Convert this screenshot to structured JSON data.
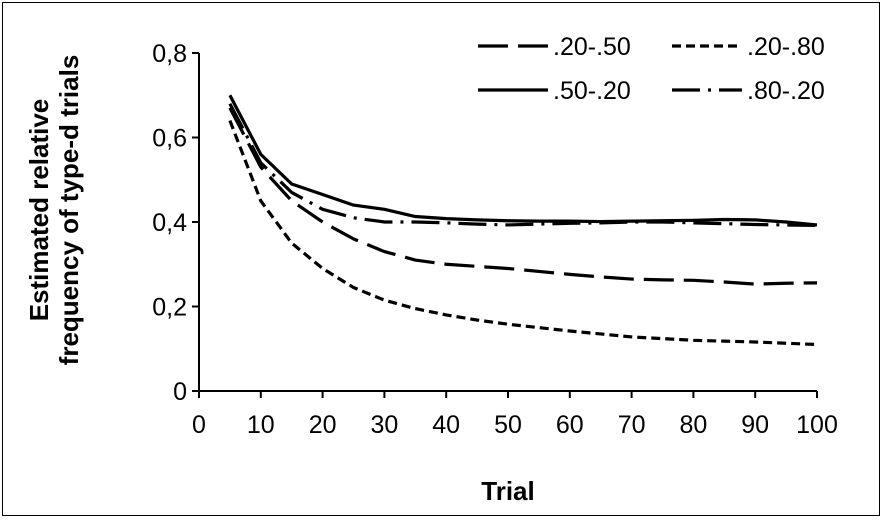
{
  "chart_data": {
    "type": "line",
    "xlabel": "Trial",
    "ylabel_lines": [
      "Estimated relative",
      "frequency of type-d trials"
    ],
    "xlim": [
      0,
      100
    ],
    "ylim": [
      0,
      0.8
    ],
    "x_ticks": [
      0,
      10,
      20,
      30,
      40,
      50,
      60,
      70,
      80,
      90,
      100
    ],
    "x_tick_labels": [
      "0",
      "10",
      "20",
      "30",
      "40",
      "50",
      "60",
      "70",
      "80",
      "90",
      "100"
    ],
    "y_ticks": [
      0,
      0.2,
      0.4,
      0.6,
      0.8
    ],
    "y_tick_labels": [
      "0",
      "0,2",
      "0,4",
      "0,6",
      "0,8"
    ],
    "grid": false,
    "legend_position": "top-right",
    "x": [
      5,
      10,
      15,
      20,
      25,
      30,
      35,
      40,
      45,
      50,
      55,
      60,
      65,
      70,
      75,
      80,
      85,
      90,
      95,
      100
    ],
    "series": [
      {
        "name": ".20-.50",
        "style": "long-dash",
        "values": [
          0.67,
          0.53,
          0.45,
          0.4,
          0.36,
          0.33,
          0.31,
          0.3,
          0.295,
          0.29,
          0.283,
          0.276,
          0.27,
          0.265,
          0.263,
          0.262,
          0.258,
          0.253,
          0.255,
          0.256
        ]
      },
      {
        "name": ".20-.80",
        "style": "short-dash",
        "values": [
          0.64,
          0.45,
          0.35,
          0.29,
          0.245,
          0.215,
          0.195,
          0.18,
          0.168,
          0.158,
          0.15,
          0.142,
          0.135,
          0.128,
          0.124,
          0.12,
          0.118,
          0.116,
          0.113,
          0.11
        ]
      },
      {
        "name": ".50-.20",
        "style": "solid",
        "values": [
          0.7,
          0.56,
          0.49,
          0.465,
          0.44,
          0.43,
          0.413,
          0.408,
          0.405,
          0.403,
          0.402,
          0.402,
          0.401,
          0.402,
          0.403,
          0.404,
          0.406,
          0.405,
          0.4,
          0.393
        ]
      },
      {
        "name": ".80-.20",
        "style": "dash-dot",
        "values": [
          0.68,
          0.54,
          0.47,
          0.43,
          0.41,
          0.4,
          0.4,
          0.398,
          0.395,
          0.393,
          0.395,
          0.397,
          0.398,
          0.4,
          0.4,
          0.398,
          0.396,
          0.394,
          0.393,
          0.392
        ]
      }
    ]
  }
}
